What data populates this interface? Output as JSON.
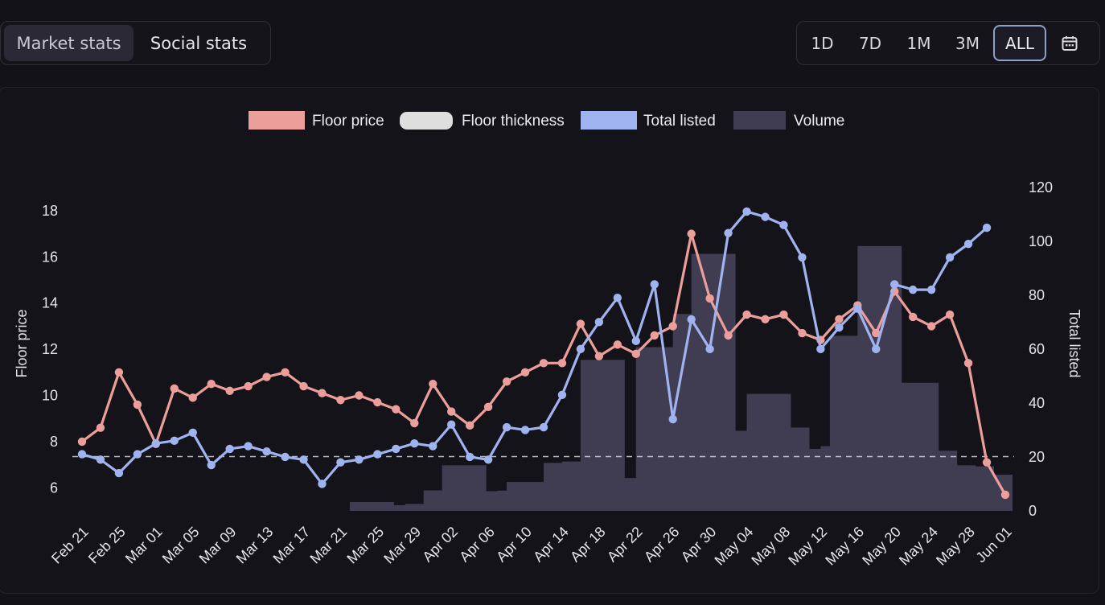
{
  "stats_tabs": {
    "items": [
      "Market stats",
      "Social stats"
    ],
    "active": 0
  },
  "range_tabs": {
    "items": [
      "1D",
      "7D",
      "1M",
      "3M",
      "ALL"
    ],
    "active": 4,
    "calendar_icon": "calendar-icon"
  },
  "colors": {
    "floor_price": "#ec9f9a",
    "total_listed": "#9fb3f0",
    "volume": "#403d52",
    "threshold": "#d8d8e0"
  },
  "chart_data": {
    "type": "line",
    "legend": [
      "Floor price",
      "Floor thickness",
      "Total listed",
      "Volume"
    ],
    "legend_position": "top-center",
    "ylabel": "Floor price",
    "y2label": "Total listed",
    "ylim": [
      5,
      19.6
    ],
    "y2lim": [
      0,
      125
    ],
    "yticks": [
      6,
      8,
      10,
      12,
      14,
      16,
      18
    ],
    "y2ticks": [
      0,
      20,
      40,
      60,
      80,
      100,
      120
    ],
    "x_tick_labels": [
      "Feb 21",
      "Feb 25",
      "Mar 01",
      "Mar 05",
      "Mar 09",
      "Mar 13",
      "Mar 17",
      "Mar 21",
      "Mar 25",
      "Mar 29",
      "Apr 02",
      "Apr 06",
      "Apr 10",
      "Apr 14",
      "Apr 18",
      "Apr 22",
      "Apr 26",
      "Apr 30",
      "May 04",
      "May 08",
      "May 12",
      "May 16",
      "May 20",
      "May 24",
      "May 28",
      "Jun 01"
    ],
    "days": 101,
    "floor_thickness_level": 7.35,
    "series": [
      {
        "name": "Floor price",
        "axis": "left",
        "points": [
          [
            0,
            8
          ],
          [
            2,
            8.6
          ],
          [
            4,
            11
          ],
          [
            6,
            9.6
          ],
          [
            8,
            7.9
          ],
          [
            10,
            10.3
          ],
          [
            12,
            9.9
          ],
          [
            14,
            10.5
          ],
          [
            16,
            10.2
          ],
          [
            18,
            10.4
          ],
          [
            20,
            10.8
          ],
          [
            22,
            11
          ],
          [
            24,
            10.4
          ],
          [
            26,
            10.1
          ],
          [
            28,
            9.8
          ],
          [
            30,
            10
          ],
          [
            32,
            9.7
          ],
          [
            34,
            9.4
          ],
          [
            36,
            8.8
          ],
          [
            38,
            10.5
          ],
          [
            40,
            9.3
          ],
          [
            42,
            8.7
          ],
          [
            44,
            9.5
          ],
          [
            46,
            10.6
          ],
          [
            48,
            11
          ],
          [
            50,
            11.4
          ],
          [
            52,
            11.4
          ],
          [
            54,
            13.1
          ],
          [
            56,
            11.7
          ],
          [
            58,
            12.2
          ],
          [
            60,
            11.8
          ],
          [
            62,
            12.6
          ],
          [
            64,
            13
          ],
          [
            66,
            17
          ],
          [
            68,
            14.2
          ],
          [
            70,
            12.6
          ],
          [
            72,
            13.5
          ],
          [
            74,
            13.3
          ],
          [
            76,
            13.5
          ],
          [
            78,
            12.7
          ],
          [
            80,
            12.4
          ],
          [
            82,
            13.3
          ],
          [
            84,
            13.9
          ],
          [
            86,
            12.7
          ],
          [
            88,
            14.5
          ],
          [
            90,
            13.4
          ],
          [
            92,
            13
          ],
          [
            94,
            13.5
          ],
          [
            96,
            11.4
          ],
          [
            98,
            7.1
          ],
          [
            100,
            5.7
          ]
        ]
      },
      {
        "name": "Total listed",
        "axis": "right",
        "points": [
          [
            0,
            21
          ],
          [
            2,
            19
          ],
          [
            4,
            14
          ],
          [
            6,
            21
          ],
          [
            8,
            25
          ],
          [
            10,
            26
          ],
          [
            12,
            29
          ],
          [
            14,
            17
          ],
          [
            16,
            23
          ],
          [
            18,
            24
          ],
          [
            20,
            22
          ],
          [
            22,
            20
          ],
          [
            24,
            19
          ],
          [
            26,
            10
          ],
          [
            28,
            18
          ],
          [
            30,
            19
          ],
          [
            32,
            21
          ],
          [
            34,
            23
          ],
          [
            36,
            25
          ],
          [
            38,
            24
          ],
          [
            40,
            32
          ],
          [
            42,
            20
          ],
          [
            44,
            19
          ],
          [
            46,
            31
          ],
          [
            48,
            30
          ],
          [
            50,
            31
          ],
          [
            52,
            43
          ],
          [
            54,
            60
          ],
          [
            56,
            70
          ],
          [
            58,
            79
          ],
          [
            60,
            63
          ],
          [
            62,
            84
          ],
          [
            64,
            34
          ],
          [
            66,
            71
          ],
          [
            68,
            60
          ],
          [
            70,
            103
          ],
          [
            72,
            111
          ],
          [
            74,
            109
          ],
          [
            76,
            106
          ],
          [
            78,
            94
          ],
          [
            80,
            60
          ],
          [
            82,
            68
          ],
          [
            84,
            75
          ],
          [
            86,
            60
          ],
          [
            88,
            84
          ],
          [
            90,
            82
          ],
          [
            92,
            82
          ],
          [
            94,
            94
          ],
          [
            96,
            99
          ],
          [
            98,
            105
          ]
        ]
      },
      {
        "name": "Volume",
        "axis": "right",
        "type": "bar",
        "bars": [
          [
            0,
            29,
            0
          ],
          [
            29,
            33,
            3.3
          ],
          [
            33,
            35,
            2.1
          ],
          [
            35,
            37,
            2.6
          ],
          [
            37,
            39,
            7.6
          ],
          [
            39,
            43,
            16.9
          ],
          [
            43,
            45,
            7.3
          ],
          [
            45,
            46,
            7.5
          ],
          [
            46,
            50,
            10.7
          ],
          [
            50,
            52,
            17.8
          ],
          [
            52,
            54,
            18.3
          ],
          [
            54,
            58,
            56
          ],
          [
            58,
            60,
            12.2
          ],
          [
            60,
            64,
            60.7
          ],
          [
            64,
            66,
            73
          ],
          [
            66,
            70,
            95.3
          ],
          [
            70,
            72,
            29.7
          ],
          [
            72,
            76,
            43.4
          ],
          [
            76,
            78,
            30.9
          ],
          [
            78,
            80,
            23
          ],
          [
            80,
            81,
            24
          ],
          [
            81,
            84,
            64.9
          ],
          [
            84,
            88,
            98.2
          ],
          [
            88,
            92,
            47.5
          ],
          [
            92,
            94,
            22.3
          ],
          [
            94,
            96,
            16.9
          ],
          [
            96,
            98,
            16.5
          ],
          [
            98,
            100,
            13.4
          ]
        ]
      }
    ]
  }
}
